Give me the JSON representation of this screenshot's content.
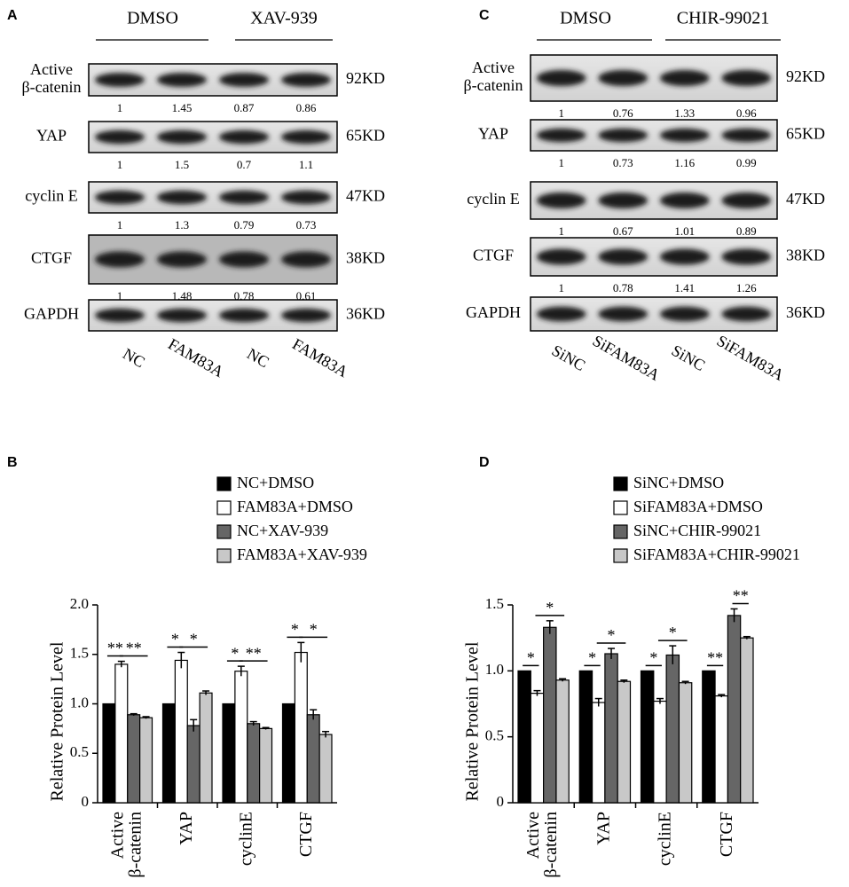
{
  "blots": [
    {
      "panel": "A",
      "groups": [
        "DMSO",
        "XAV-939"
      ],
      "lanes": [
        "NC",
        "FAM83A",
        "NC",
        "FAM83A"
      ],
      "rows": [
        {
          "label": [
            "Active",
            "β-catenin"
          ],
          "size": "92KD",
          "quant": [
            1,
            1.45,
            0.87,
            0.86
          ]
        },
        {
          "label": [
            "YAP"
          ],
          "size": "65KD",
          "quant": [
            1,
            1.5,
            0.7,
            1.1
          ]
        },
        {
          "label": [
            "cyclin E"
          ],
          "size": "47KD",
          "quant": [
            1,
            1.3,
            0.79,
            0.73
          ]
        },
        {
          "label": [
            "CTGF"
          ],
          "size": "38KD",
          "quant": [
            1,
            1.48,
            0.78,
            0.61
          ]
        },
        {
          "label": [
            "GAPDH"
          ],
          "size": "36KD"
        }
      ]
    },
    {
      "panel": "C",
      "groups": [
        "DMSO",
        "CHIR-99021"
      ],
      "lanes": [
        "SiNC",
        "SiFAM83A",
        "SiNC",
        "SiFAM83A"
      ],
      "rows": [
        {
          "label": [
            "Active",
            "β-catenin"
          ],
          "size": "92KD",
          "quant": [
            1,
            0.76,
            1.33,
            0.96
          ]
        },
        {
          "label": [
            "YAP"
          ],
          "size": "65KD",
          "quant": [
            1,
            0.73,
            1.16,
            0.99
          ]
        },
        {
          "label": [
            "cyclin E"
          ],
          "size": "47KD",
          "quant": [
            1,
            0.67,
            1.01,
            0.89
          ]
        },
        {
          "label": [
            "CTGF"
          ],
          "size": "38KD",
          "quant": [
            1,
            0.78,
            1.41,
            1.26
          ]
        },
        {
          "label": [
            "GAPDH"
          ],
          "size": "36KD"
        }
      ]
    }
  ],
  "chart_data": [
    {
      "type": "bar",
      "panel": "B",
      "ylabel": "Relative Protein Level",
      "categories": [
        [
          "Active",
          "β-catenin"
        ],
        [
          "YAP"
        ],
        [
          "cyclinE"
        ],
        [
          "CTGF"
        ]
      ],
      "series": [
        {
          "name": "NC+DMSO",
          "color": "#000000",
          "values": [
            1,
            1,
            1,
            1
          ],
          "errors": [
            0,
            0,
            0,
            0
          ]
        },
        {
          "name": "FAM83A+DMSO",
          "color": "#ffffff",
          "values": [
            1.4,
            1.44,
            1.33,
            1.52
          ],
          "errors": [
            0.03,
            0.08,
            0.05,
            0.1
          ]
        },
        {
          "name": "NC+XAV-939",
          "color": "#666666",
          "values": [
            0.89,
            0.78,
            0.8,
            0.89
          ],
          "errors": [
            0.01,
            0.06,
            0.02,
            0.05
          ]
        },
        {
          "name": "FAM83A+XAV-939",
          "color": "#c8c8c8",
          "values": [
            0.86,
            1.11,
            0.75,
            0.69
          ],
          "errors": [
            0.01,
            0.02,
            0.01,
            0.03
          ]
        }
      ],
      "ylim": [
        0,
        2
      ],
      "yticks": [
        0,
        0.5,
        {
          "value": 1,
          "label": "1.0"
        },
        1.5,
        {
          "value": 2,
          "label": "2.0"
        }
      ],
      "significance": [
        {
          "category": 0,
          "bars": [
            0,
            1
          ],
          "label": "**"
        },
        {
          "category": 0,
          "bars": [
            1,
            3
          ],
          "label": "**"
        },
        {
          "category": 1,
          "bars": [
            0,
            1
          ],
          "label": "*"
        },
        {
          "category": 1,
          "bars": [
            1,
            3
          ],
          "label": "*"
        },
        {
          "category": 2,
          "bars": [
            0,
            1
          ],
          "label": "*"
        },
        {
          "category": 2,
          "bars": [
            1,
            3
          ],
          "label": "**"
        },
        {
          "category": 3,
          "bars": [
            0,
            1
          ],
          "label": "*"
        },
        {
          "category": 3,
          "bars": [
            1,
            3
          ],
          "label": "*"
        }
      ]
    },
    {
      "type": "bar",
      "panel": "D",
      "ylabel": "Relative Protein Level",
      "categories": [
        [
          "Active",
          "β-catenin"
        ],
        [
          "YAP"
        ],
        [
          "cyclinE"
        ],
        [
          "CTGF"
        ]
      ],
      "series": [
        {
          "name": "SiNC+DMSO",
          "color": "#000000",
          "values": [
            1,
            1,
            1,
            1
          ],
          "errors": [
            0,
            0,
            0,
            0
          ]
        },
        {
          "name": "SiFAM83A+DMSO",
          "color": "#ffffff",
          "values": [
            0.83,
            0.76,
            0.77,
            0.81
          ],
          "errors": [
            0.02,
            0.03,
            0.02,
            0.01
          ]
        },
        {
          "name": "SiNC+CHIR-99021",
          "color": "#666666",
          "values": [
            1.33,
            1.13,
            1.12,
            1.42
          ],
          "errors": [
            0.05,
            0.04,
            0.07,
            0.05
          ]
        },
        {
          "name": "SiFAM83A+CHIR-99021",
          "color": "#c8c8c8",
          "values": [
            0.93,
            0.92,
            0.91,
            1.25
          ],
          "errors": [
            0.01,
            0.01,
            0.01,
            0.01
          ]
        }
      ],
      "ylim": [
        0,
        1.5
      ],
      "yticks": [
        0,
        0.5,
        {
          "value": 1,
          "label": "1.0"
        },
        1.5
      ],
      "significance": [
        {
          "category": 0,
          "bars": [
            0,
            1
          ],
          "label": "*"
        },
        {
          "category": 0,
          "bars": [
            1,
            3
          ],
          "label": "*"
        },
        {
          "category": 1,
          "bars": [
            0,
            1
          ],
          "label": "*"
        },
        {
          "category": 1,
          "bars": [
            1,
            3
          ],
          "label": "*"
        },
        {
          "category": 2,
          "bars": [
            0,
            1
          ],
          "label": "*"
        },
        {
          "category": 2,
          "bars": [
            1,
            3
          ],
          "label": "*"
        },
        {
          "category": 3,
          "bars": [
            0,
            1
          ],
          "label": "**"
        },
        {
          "category": 3,
          "bars": [
            2,
            3
          ],
          "label": "**"
        }
      ]
    }
  ]
}
